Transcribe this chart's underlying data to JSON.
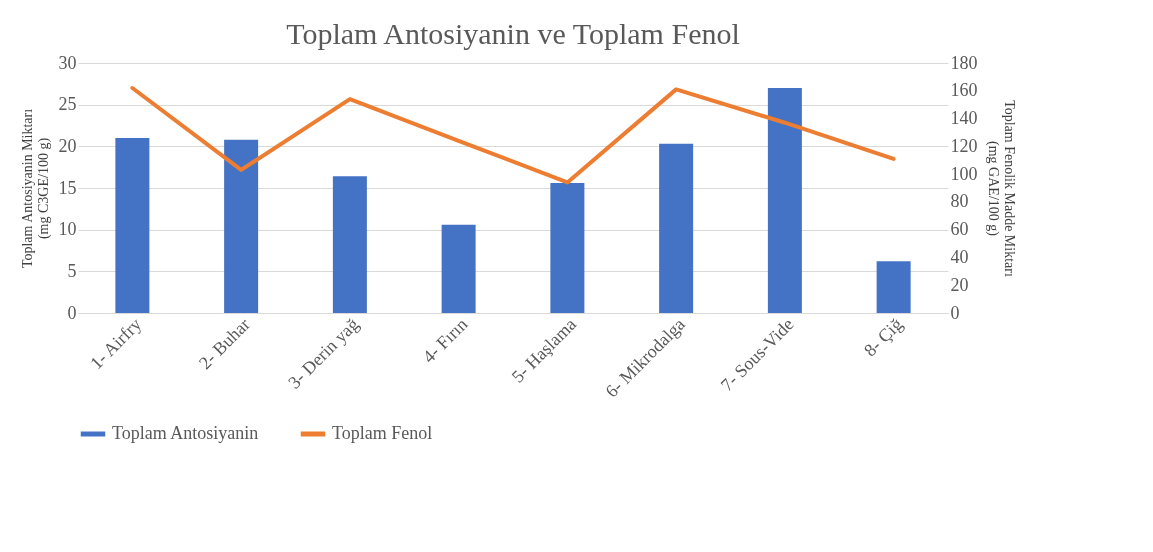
{
  "chart_data": {
    "type": "bar",
    "title": "Toplam Antosiyanin ve Toplam Fenol",
    "ylabel": "Toplam Antosiyanin Miktarı\n(mg C3GE/100 g)",
    "y2label": "Toplam Fenolik Madde Miktarı\n(mg GAE/100 g)",
    "categories": [
      "1- Airfry",
      "2- Buhar",
      "3- Derin yağ",
      "4- Fırın",
      "5- Haşlama",
      "6- Mikrodalga",
      "7- Sous-Vide",
      "8- Çiğ"
    ],
    "series": [
      {
        "name": "Toplam Antosiyanin",
        "color": "#4472c4",
        "values": [
          21.0,
          20.8,
          16.4,
          10.6,
          15.6,
          20.3,
          27.0,
          6.2
        ]
      },
      {
        "name": "Toplam Fenol",
        "type": "line",
        "axis": "y2",
        "color": "#ed7d31",
        "values": [
          162,
          103,
          154,
          124,
          94,
          161,
          137,
          111
        ]
      }
    ],
    "ylim": [
      0,
      30
    ],
    "yticks": [
      0,
      5,
      10,
      15,
      20,
      25,
      30
    ],
    "y2lim": [
      0,
      180
    ],
    "y2ticks": [
      0,
      20,
      40,
      60,
      80,
      100,
      120,
      140,
      160,
      180
    ],
    "grid": "y",
    "legend": "bottom",
    "marker": "none",
    "line_style": "solid"
  }
}
